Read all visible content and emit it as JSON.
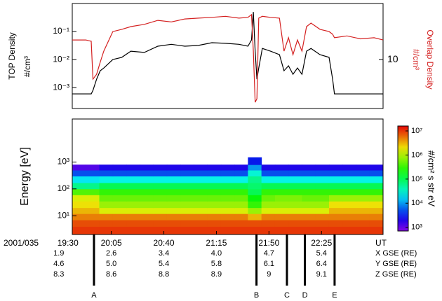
{
  "chart_data": [
    {
      "type": "line",
      "ylabel": "TOP Density",
      "yunit": "#/cm³",
      "y2label": "Overlap Density",
      "y2unit": "#/cm³",
      "log": true,
      "xlim": [
        19.65,
        23.1
      ],
      "ylim": [
        0.00018,
        1
      ],
      "y2lim": [
        0.18,
        1000
      ],
      "yticks": [
        {
          "value": 0.001,
          "label": "10⁻³"
        },
        {
          "value": 0.01,
          "label": "10⁻²"
        },
        {
          "value": 0.1,
          "label": "10⁻¹"
        }
      ],
      "y2ticks": [
        10
      ],
      "x": [
        19.65,
        19.8,
        19.86,
        19.88,
        19.92,
        19.96,
        20.0,
        20.1,
        20.2,
        20.3,
        20.45,
        20.6,
        20.75,
        20.9,
        21.05,
        21.2,
        21.35,
        21.5,
        21.6,
        21.64,
        21.66,
        21.68,
        21.7,
        21.72,
        21.76,
        21.85,
        21.95,
        22.0,
        22.05,
        22.1,
        22.15,
        22.2,
        22.25,
        22.3,
        22.4,
        22.5,
        22.54,
        22.56,
        22.7,
        22.85,
        23.0,
        23.1
      ],
      "series": [
        {
          "color": "#000000",
          "values": [
            0.0006,
            0.0006,
            0.0006,
            0.0008,
            0.002,
            0.004,
            0.005,
            0.01,
            0.012,
            0.02,
            0.018,
            0.03,
            0.035,
            0.03,
            0.032,
            0.04,
            0.038,
            0.035,
            0.03,
            0.05,
            0.5,
            0.02,
            0.002,
            0.005,
            0.025,
            0.02,
            0.015,
            0.004,
            0.006,
            0.003,
            0.005,
            0.003,
            0.02,
            0.025,
            0.015,
            0.012,
            0.002,
            0.0006,
            0.0006,
            0.0006,
            0.0006,
            0.0006
          ]
        },
        {
          "color": "#d42020",
          "axis": "y2",
          "values": [
            50,
            50,
            45,
            2,
            3,
            8,
            20,
            100,
            120,
            150,
            180,
            250,
            220,
            280,
            300,
            320,
            350,
            300,
            320,
            400,
            20,
            0.3,
            0.4,
            300,
            350,
            320,
            300,
            20,
            60,
            15,
            50,
            20,
            150,
            200,
            120,
            100,
            80,
            60,
            70,
            55,
            60,
            50
          ]
        }
      ]
    },
    {
      "type": "heatmap",
      "ylabel": "Energy  [eV]",
      "zlabel": "#/cm² s str eV",
      "log": true,
      "xlim": [
        19.65,
        23.1
      ],
      "ylim": [
        2,
        40000
      ],
      "zlim": [
        700,
        16000000
      ],
      "yticks": [
        {
          "value": 10,
          "label": "10¹"
        },
        {
          "value": 100,
          "label": "10²"
        },
        {
          "value": 1000,
          "label": "10³"
        }
      ],
      "zticks": [
        {
          "value": 1000,
          "label": "10³"
        },
        {
          "value": 10000,
          "label": "10⁴"
        },
        {
          "value": 100000,
          "label": "10⁵"
        },
        {
          "value": 1000000,
          "label": "10⁶"
        },
        {
          "value": 10000000,
          "label": "10⁷"
        }
      ],
      "xticks": [
        {
          "value": 19.5,
          "label": "19:30"
        },
        {
          "value": 20.0833,
          "label": "20:05"
        },
        {
          "value": 20.6667,
          "label": "20:40"
        },
        {
          "value": 21.25,
          "label": "21:15"
        },
        {
          "value": 21.8333,
          "label": "21:50"
        },
        {
          "value": 22.4167,
          "label": "22:25"
        }
      ],
      "date": "2001/035",
      "xtick_row_label": "UT",
      "ephemeris": [
        {
          "label": "X GSE (RE)",
          "values": [
            "1.9",
            "2.6",
            "3.4",
            "4.0",
            "4.7",
            "5.4"
          ]
        },
        {
          "label": "Y GSE (RE)",
          "values": [
            "4.6",
            "5.0",
            "5.4",
            "5.8",
            "6.1",
            "6.4"
          ]
        },
        {
          "label": "Z GSE (RE)",
          "values": [
            "8.3",
            "8.6",
            "8.8",
            "8.9",
            "9",
            "9.1"
          ]
        }
      ],
      "events": [
        {
          "label": "A",
          "x": 19.891
        },
        {
          "label": "B",
          "x": 21.695
        },
        {
          "label": "C",
          "x": 22.033
        },
        {
          "label": "D",
          "x": 22.232
        },
        {
          "label": "E",
          "x": 22.562
        }
      ],
      "xbins": [
        19.65,
        19.8,
        19.95,
        20.1,
        20.25,
        20.4,
        20.55,
        20.7,
        20.85,
        21.0,
        21.15,
        21.3,
        21.45,
        21.6,
        21.75,
        21.9,
        22.05,
        22.2,
        22.35,
        22.5,
        22.65,
        22.8,
        22.95,
        23.1
      ],
      "ybins": [
        2,
        4,
        7,
        12,
        20,
        35,
        60,
        100,
        170,
        300,
        500,
        800,
        1500
      ],
      "z": [
        [
          10000000.0,
          10000000.0,
          10000000.0,
          10000000.0,
          10000000.0,
          10000000.0,
          10000000.0,
          10000000.0,
          10000000.0,
          10000000.0,
          10000000.0,
          10000000.0,
          10000000.0,
          10000000.0,
          10000000.0,
          10000000.0,
          10000000.0,
          10000000.0,
          10000000.0,
          10000000.0,
          10000000.0,
          10000000.0,
          10000000.0
        ],
        [
          8000000.0,
          8000000.0,
          8000000.0,
          8000000.0,
          8000000.0,
          8000000.0,
          8000000.0,
          8000000.0,
          8000000.0,
          8000000.0,
          8000000.0,
          8000000.0,
          8000000.0,
          8000000.0,
          8000000.0,
          8000000.0,
          8000000.0,
          8000000.0,
          8000000.0,
          8000000.0,
          8000000.0,
          8000000.0,
          8000000.0
        ],
        [
          5000000.0,
          5000000.0,
          5000000.0,
          5000000.0,
          5000000.0,
          5000000.0,
          5000000.0,
          5000000.0,
          5000000.0,
          5000000.0,
          5000000.0,
          5000000.0,
          5000000.0,
          3000000.0,
          5000000.0,
          5000000.0,
          5000000.0,
          5000000.0,
          5000000.0,
          5000000.0,
          5000000.0,
          5000000.0,
          5000000.0
        ],
        [
          3000000.0,
          3000000.0,
          1500000.0,
          1500000.0,
          1500000.0,
          1500000.0,
          1500000.0,
          1500000.0,
          1500000.0,
          1500000.0,
          1500000.0,
          1500000.0,
          1500000.0,
          800000.0,
          1500000.0,
          1500000.0,
          1500000.0,
          1500000.0,
          1500000.0,
          3000000.0,
          3000000.0,
          3000000.0,
          3000000.0
        ],
        [
          2000000.0,
          2000000.0,
          800000.0,
          800000.0,
          800000.0,
          800000.0,
          800000.0,
          800000.0,
          800000.0,
          800000.0,
          800000.0,
          800000.0,
          800000.0,
          300000.0,
          800000.0,
          800000.0,
          800000.0,
          800000.0,
          800000.0,
          2000000.0,
          2000000.0,
          2000000.0,
          2000000.0
        ],
        [
          1500000.0,
          1500000.0,
          500000.0,
          500000.0,
          500000.0,
          500000.0,
          500000.0,
          500000.0,
          500000.0,
          500000.0,
          500000.0,
          500000.0,
          500000.0,
          200000.0,
          500000.0,
          600000.0,
          600000.0,
          500000.0,
          500000.0,
          800000.0,
          800000.0,
          800000.0,
          800000.0
        ],
        [
          400000.0,
          400000.0,
          300000.0,
          300000.0,
          300000.0,
          300000.0,
          300000.0,
          300000.0,
          300000.0,
          300000.0,
          300000.0,
          300000.0,
          300000.0,
          100000.0,
          300000.0,
          300000.0,
          300000.0,
          300000.0,
          300000.0,
          300000.0,
          300000.0,
          300000.0,
          300000.0
        ],
        [
          60000.0,
          60000.0,
          100000.0,
          100000.0,
          100000.0,
          100000.0,
          100000.0,
          100000.0,
          100000.0,
          100000.0,
          100000.0,
          100000.0,
          100000.0,
          80000.0,
          100000.0,
          100000.0,
          100000.0,
          100000.0,
          100000.0,
          100000.0,
          100000.0,
          100000.0,
          100000.0
        ],
        [
          20000.0,
          20000.0,
          25000.0,
          25000.0,
          25000.0,
          25000.0,
          25000.0,
          25000.0,
          25000.0,
          25000.0,
          25000.0,
          25000.0,
          25000.0,
          60000.0,
          25000.0,
          25000.0,
          25000.0,
          25000.0,
          25000.0,
          25000.0,
          25000.0,
          25000.0,
          25000.0
        ],
        [
          5000.0,
          5000.0,
          5000.0,
          5000.0,
          5000.0,
          5000.0,
          5000.0,
          5000.0,
          5000.0,
          5000.0,
          5000.0,
          5000.0,
          5000.0,
          30000.0,
          5000.0,
          5000.0,
          5000.0,
          5000.0,
          5000.0,
          5000.0,
          5000.0,
          5000.0,
          5000.0
        ],
        [
          1200.0,
          1200.0,
          2000.0,
          2000.0,
          2000.0,
          2000.0,
          2000.0,
          2000.0,
          2000.0,
          2000.0,
          2000.0,
          2000.0,
          2000.0,
          10000.0,
          2000.0,
          2000.0,
          2000.0,
          2000.0,
          2000.0,
          2000.0,
          2000.0,
          2000.0,
          2000.0
        ],
        [
          null,
          null,
          null,
          null,
          null,
          null,
          null,
          null,
          null,
          null,
          null,
          null,
          null,
          3000.0,
          null,
          null,
          null,
          null,
          null,
          null,
          null,
          null,
          null
        ]
      ]
    }
  ]
}
